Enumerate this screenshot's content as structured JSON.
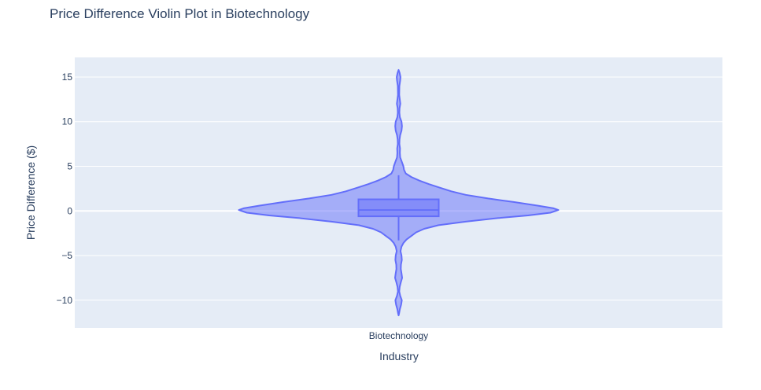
{
  "chart_data": {
    "type": "violin",
    "title": "Price Difference Violin Plot in Biotechnology",
    "xlabel": "Industry",
    "ylabel": "Price Difference ($)",
    "categories": [
      "Biotechnology"
    ],
    "ylim": [
      -13.1,
      17.2
    ],
    "yticks": [
      15,
      10,
      5,
      0,
      -5,
      -10
    ],
    "ytick_labels": [
      "15",
      "10",
      "5",
      "0",
      "−5",
      "−10"
    ],
    "grid": true,
    "colors": {
      "plot_bg": "#e5ecf6",
      "grid": "#ffffff",
      "violin_fill": "#636efa",
      "violin_line": "#636efa",
      "text": "#2a3f5f"
    },
    "series": [
      {
        "category": "Biotechnology",
        "box": {
          "q1": -0.6,
          "median": 0.1,
          "q3": 1.3,
          "whisker_low": -3.3,
          "whisker_high": 4.0
        },
        "density": [
          [
            15.8,
            0.0
          ],
          [
            15.5,
            0.006
          ],
          [
            15.0,
            0.012
          ],
          [
            14.6,
            0.01
          ],
          [
            14.0,
            0.005
          ],
          [
            13.0,
            0.004
          ],
          [
            12.0,
            0.011
          ],
          [
            11.5,
            0.006
          ],
          [
            11.0,
            0.005
          ],
          [
            10.5,
            0.008
          ],
          [
            10.0,
            0.018
          ],
          [
            9.5,
            0.021
          ],
          [
            9.0,
            0.018
          ],
          [
            8.5,
            0.01
          ],
          [
            8.0,
            0.006
          ],
          [
            7.5,
            0.005
          ],
          [
            7.0,
            0.009
          ],
          [
            6.5,
            0.008
          ],
          [
            6.0,
            0.01
          ],
          [
            5.5,
            0.02
          ],
          [
            5.0,
            0.03
          ],
          [
            4.6,
            0.034
          ],
          [
            4.2,
            0.045
          ],
          [
            3.8,
            0.08
          ],
          [
            3.4,
            0.13
          ],
          [
            3.0,
            0.19
          ],
          [
            2.6,
            0.26
          ],
          [
            2.2,
            0.33
          ],
          [
            1.8,
            0.42
          ],
          [
            1.4,
            0.56
          ],
          [
            1.0,
            0.72
          ],
          [
            0.6,
            0.87
          ],
          [
            0.3,
            0.97
          ],
          [
            0.1,
            1.0
          ],
          [
            -0.2,
            0.95
          ],
          [
            -0.5,
            0.81
          ],
          [
            -0.8,
            0.62
          ],
          [
            -1.2,
            0.42
          ],
          [
            -1.6,
            0.25
          ],
          [
            -2.0,
            0.16
          ],
          [
            -2.4,
            0.11
          ],
          [
            -2.8,
            0.08
          ],
          [
            -3.2,
            0.05
          ],
          [
            -3.6,
            0.03
          ],
          [
            -4.0,
            0.018
          ],
          [
            -4.5,
            0.012
          ],
          [
            -5.0,
            0.018
          ],
          [
            -5.5,
            0.02
          ],
          [
            -6.0,
            0.015
          ],
          [
            -6.5,
            0.014
          ],
          [
            -7.0,
            0.018
          ],
          [
            -7.5,
            0.022
          ],
          [
            -8.0,
            0.014
          ],
          [
            -8.5,
            0.007
          ],
          [
            -9.0,
            0.004
          ],
          [
            -9.5,
            0.01
          ],
          [
            -10.0,
            0.02
          ],
          [
            -10.5,
            0.016
          ],
          [
            -11.0,
            0.008
          ],
          [
            -11.5,
            0.003
          ],
          [
            -11.7,
            0.0
          ]
        ]
      }
    ]
  }
}
